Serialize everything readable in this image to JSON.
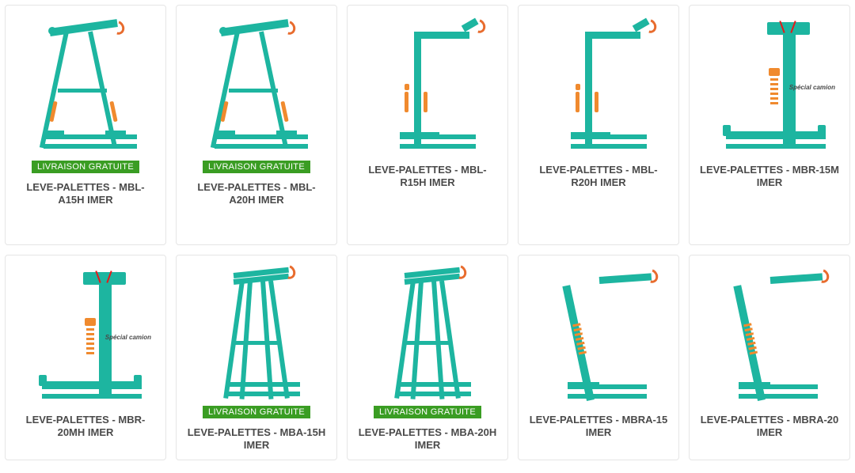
{
  "badge_text": "LIVRAISON GRATUITE",
  "colors": {
    "teal": "#1db5a0",
    "orange": "#f08a2e",
    "dark_orange": "#e86c2e",
    "badge_bg": "#3a9d23",
    "badge_fg": "#ffffff",
    "border": "#e5e5e5",
    "title_color": "#4a4a4a",
    "red": "#e41a1a"
  },
  "label_special": "Spécial camion",
  "products": [
    {
      "title": "LEVE-PALETTES - MBL-A15H IMER",
      "badge": true,
      "variant": "A",
      "label": ""
    },
    {
      "title": "LEVE-PALETTES - MBL-A20H IMER",
      "badge": true,
      "variant": "A",
      "label": ""
    },
    {
      "title": "LEVE-PALETTES - MBL-R15H IMER",
      "badge": false,
      "variant": "R",
      "label": ""
    },
    {
      "title": "LEVE-PALETTES - MBL-R20H IMER",
      "badge": false,
      "variant": "R",
      "label": ""
    },
    {
      "title": "LEVE-PALETTES - MBR-15M IMER",
      "badge": false,
      "variant": "MBR",
      "label": "Spécial camion"
    },
    {
      "title": "LEVE-PALETTES - MBR-20MH IMER",
      "badge": false,
      "variant": "MBR",
      "label": "Spécial camion"
    },
    {
      "title": "LEVE-PALETTES - MBA-15H IMER",
      "badge": true,
      "variant": "MBA",
      "label": ""
    },
    {
      "title": "LEVE-PALETTES - MBA-20H IMER",
      "badge": true,
      "variant": "MBA",
      "label": ""
    },
    {
      "title": "LEVE-PALETTES - MBRA-15 IMER",
      "badge": false,
      "variant": "RA",
      "label": ""
    },
    {
      "title": "LEVE-PALETTES - MBRA-20 IMER",
      "badge": false,
      "variant": "RA",
      "label": ""
    }
  ]
}
